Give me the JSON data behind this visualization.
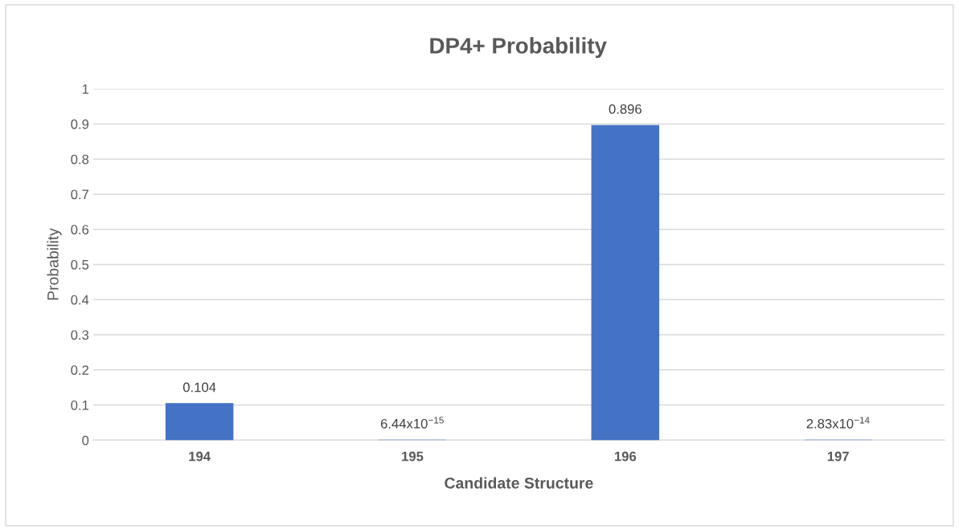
{
  "chart_data": {
    "type": "bar",
    "title": "DP4+ Probability",
    "xlabel": "Candidate Structure",
    "ylabel": "Probability",
    "categories": [
      "194",
      "195",
      "196",
      "197"
    ],
    "values": [
      0.104,
      6.44e-15,
      0.896,
      2.83e-14
    ],
    "value_labels": [
      "0.104",
      "6.44x10$^{−15}$",
      "0.896",
      "2.83x10$^{−14}$"
    ],
    "color": "#4472c4",
    "ylim": [
      0,
      1
    ],
    "yticks": [
      0,
      0.1,
      0.2,
      0.3,
      0.4,
      0.5,
      0.6,
      0.7,
      0.8,
      0.9,
      1
    ],
    "grid": "y"
  }
}
